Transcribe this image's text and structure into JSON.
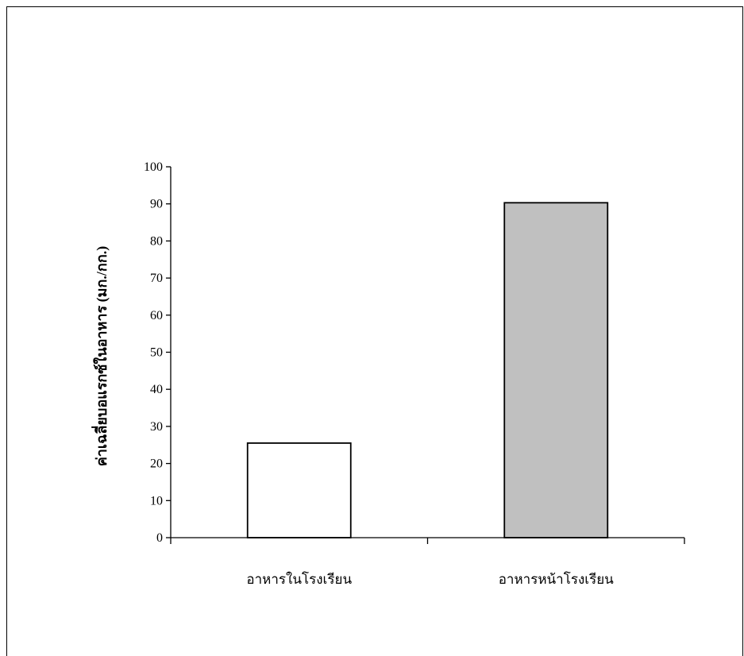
{
  "chart_data": {
    "type": "bar",
    "categories": [
      "อาหารในโรงเรียน",
      "อาหารหน้าโรงเรียน"
    ],
    "values": [
      25.5,
      90.3
    ],
    "bar_colors": [
      "#ffffff",
      "#c0c0c0"
    ],
    "title": "",
    "xlabel": "",
    "ylabel": "ค่าเฉลี่ยบอแรกซ์ในอาหาร (มก./กก.)",
    "ylim": [
      0,
      100
    ],
    "yticks": [
      0,
      10,
      20,
      30,
      40,
      50,
      60,
      70,
      80,
      90,
      100
    ],
    "grid": false,
    "legend": "none"
  }
}
